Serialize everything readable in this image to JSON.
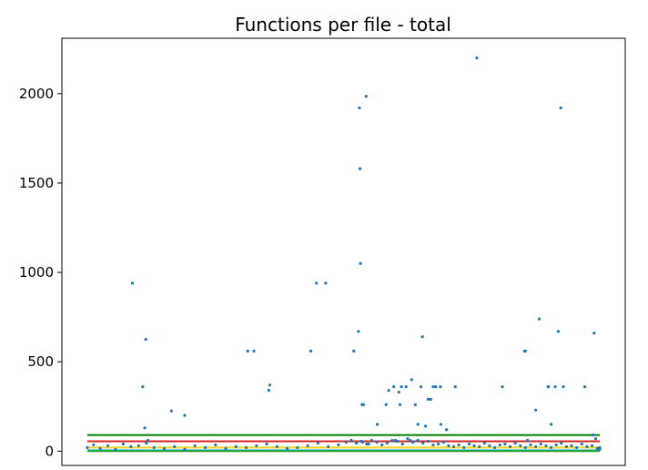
{
  "chart_data": {
    "type": "scatter",
    "title": "Functions per file - total",
    "xlabel": "",
    "ylabel": "",
    "xlim": [
      0,
      1000
    ],
    "ylim": [
      -80,
      2310
    ],
    "y_ticks": [
      0,
      500,
      1000,
      1500,
      2000
    ],
    "x_ticks_shown": false,
    "grid": false,
    "legend": "none",
    "colors": {
      "points": "#1f77b4",
      "green_line": "#008000",
      "red_line": "#d62728",
      "yellow_line": "#ffd21f",
      "cyan_line": "#17becf"
    },
    "reference_lines": [
      {
        "y": 90,
        "color": "#008000"
      },
      {
        "y": 55,
        "color": "#d62728"
      },
      {
        "y": 20,
        "color": "#ffd21f"
      },
      {
        "y": 5,
        "color": "#17becf"
      },
      {
        "y": 0,
        "color": "#2ca02c"
      }
    ],
    "points": {
      "x": [
        88,
        108,
        112,
        114,
        118,
        164,
        190,
        313,
        325,
        354,
        356,
        436,
        447,
        465,
        520,
        529,
        531,
        532,
        533,
        536,
        537,
        539,
        544,
        549,
        566,
        583,
        588,
        598,
        601,
        608,
        610,
        613,
        622,
        630,
        633,
        640,
        645,
        651,
        654,
        660,
        665,
        670,
        675,
        680,
        689,
        690,
        701,
        718,
        760,
        810,
        853,
        855,
        859,
        875,
        882,
        899,
        900,
        905,
        913,
        919,
        924,
        929,
        971,
        987,
        989,
        992,
        1000,
        1000
      ],
      "y": [
        940,
        360,
        130,
        625,
        60,
        225,
        200,
        560,
        560,
        340,
        370,
        560,
        940,
        940,
        560,
        670,
        1920,
        1580,
        1050,
        260,
        50,
        260,
        1985,
        40,
        150,
        260,
        340,
        360,
        60,
        330,
        260,
        360,
        360,
        60,
        400,
        260,
        150,
        360,
        640,
        140,
        290,
        290,
        360,
        360,
        360,
        150,
        120,
        360,
        2200,
        360,
        560,
        560,
        60,
        230,
        740,
        360,
        360,
        150,
        360,
        670,
        1920,
        360,
        360,
        90,
        660,
        70,
        20,
        10
      ]
    },
    "baseline_points": {
      "x": [
        0,
        12,
        25,
        40,
        55,
        70,
        85,
        100,
        115,
        130,
        150,
        170,
        190,
        210,
        230,
        250,
        270,
        290,
        310,
        330,
        350,
        370,
        390,
        410,
        430,
        450,
        470,
        490,
        505,
        515,
        525,
        535,
        545,
        555,
        565,
        575,
        585,
        595,
        605,
        615,
        625,
        635,
        645,
        655,
        665,
        675,
        685,
        695,
        705,
        715,
        725,
        735,
        745,
        755,
        765,
        775,
        785,
        795,
        805,
        815,
        825,
        835,
        845,
        855,
        865,
        875,
        885,
        895,
        905,
        915,
        925,
        935,
        945,
        955,
        965,
        975,
        985,
        995
      ],
      "y": [
        20,
        35,
        15,
        30,
        10,
        40,
        25,
        30,
        45,
        20,
        15,
        25,
        10,
        30,
        20,
        35,
        15,
        25,
        20,
        30,
        40,
        25,
        15,
        20,
        30,
        45,
        25,
        35,
        50,
        60,
        45,
        55,
        40,
        60,
        50,
        35,
        45,
        60,
        55,
        40,
        70,
        50,
        60,
        45,
        55,
        35,
        40,
        50,
        30,
        25,
        35,
        20,
        40,
        30,
        25,
        45,
        30,
        20,
        35,
        40,
        25,
        45,
        30,
        20,
        35,
        25,
        40,
        30,
        20,
        35,
        45,
        25,
        30,
        20,
        40,
        25,
        30,
        15
      ]
    }
  }
}
